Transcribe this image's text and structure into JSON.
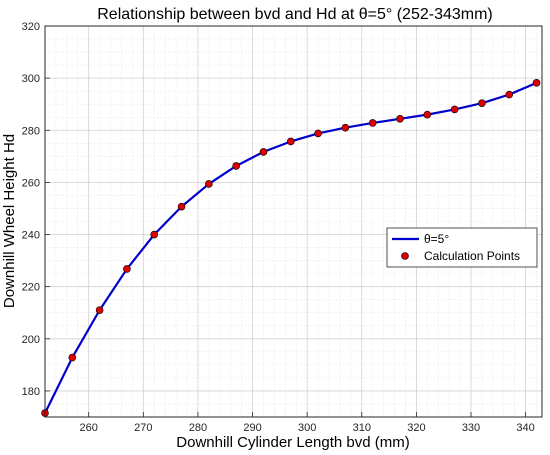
{
  "chart_data": {
    "type": "line",
    "title": "Relationship between bvd and Hd at θ=5° (252-343mm)",
    "xlabel": "Downhill Cylinder Length bvd (mm)",
    "ylabel": "Downhill Wheel Height Hd",
    "xlim": [
      252,
      343
    ],
    "ylim": [
      170,
      320
    ],
    "xticks": [
      260,
      270,
      280,
      290,
      300,
      310,
      320,
      330,
      340
    ],
    "yticks": [
      180,
      200,
      220,
      240,
      260,
      280,
      300,
      320
    ],
    "grid": true,
    "legend_position": "right",
    "series": [
      {
        "name": "θ=5°",
        "style": "line",
        "color": "#0000cc",
        "x": [
          252,
          257,
          262,
          267,
          272,
          277,
          282,
          287,
          292,
          297,
          302,
          307,
          312,
          317,
          322,
          327,
          332,
          337,
          342
        ],
        "y": [
          171.5,
          192.8,
          211.0,
          226.8,
          240.0,
          250.7,
          259.4,
          266.3,
          271.7,
          275.7,
          278.8,
          281.0,
          282.8,
          284.4,
          286.0,
          288.0,
          290.4,
          293.7,
          298.2
        ]
      },
      {
        "name": "Calculation Points",
        "style": "marker",
        "color": "#dd0000",
        "x": [
          252,
          257,
          262,
          267,
          272,
          277,
          282,
          287,
          292,
          297,
          302,
          307,
          312,
          317,
          322,
          327,
          332,
          337,
          342
        ],
        "y": [
          171.5,
          192.8,
          211.0,
          226.8,
          240.0,
          250.7,
          259.4,
          266.3,
          271.7,
          275.7,
          278.8,
          281.0,
          282.8,
          284.4,
          286.0,
          288.0,
          290.4,
          293.7,
          298.2
        ]
      }
    ]
  }
}
